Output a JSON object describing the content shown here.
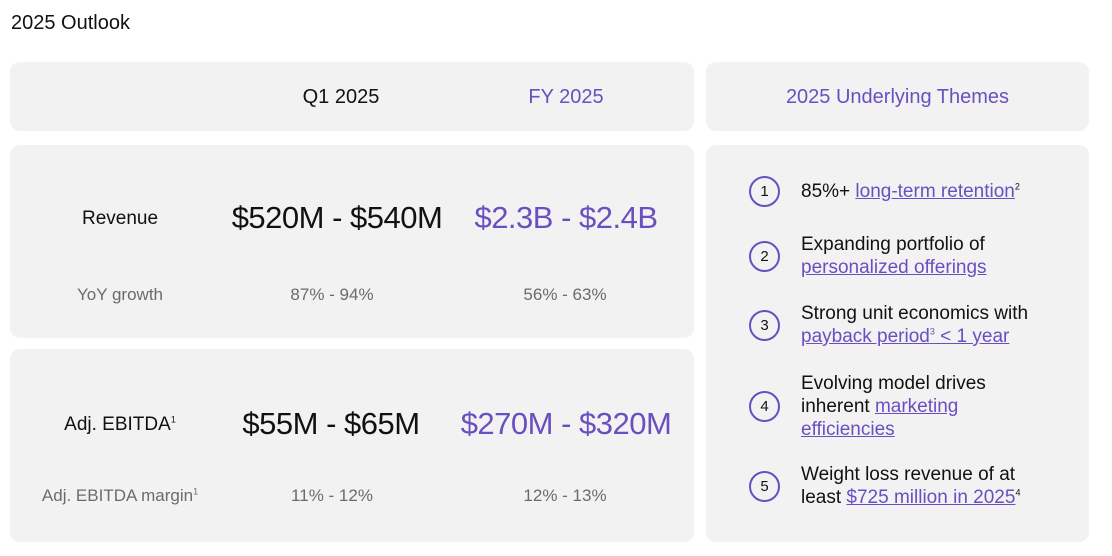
{
  "page_title": "2025 Outlook",
  "header": {
    "col_q1": "Q1 2025",
    "col_fy": "FY 2025",
    "themes_title": "2025 Underlying Themes"
  },
  "revenue": {
    "label": "Revenue",
    "q1": "$520M - $540M",
    "fy": "$2.3B - $2.4B",
    "growth_label": "YoY growth",
    "growth_q1": "87% - 94%",
    "growth_fy": "56% - 63%"
  },
  "ebitda": {
    "label": "Adj. EBITDA",
    "label_sup": "1",
    "q1": "$55M - $65M",
    "fy": "$270M - $320M",
    "margin_label": "Adj. EBITDA margin",
    "margin_sup": "1",
    "margin_q1": "11% - 12%",
    "margin_fy": "12% - 13%"
  },
  "themes": [
    {
      "num": "1",
      "pre": "85%+ ",
      "link": "long-term retention",
      "sup": "2"
    },
    {
      "num": "2",
      "pre": "Expanding portfolio of ",
      "link": "personalized offerings"
    },
    {
      "num": "3",
      "pre": "Strong unit economics with ",
      "link": "payback period",
      "sup": "3",
      "post": " < 1 year"
    },
    {
      "num": "4",
      "pre": "Evolving model drives inherent ",
      "link": "marketing efficiencies"
    },
    {
      "num": "5",
      "pre": "Weight loss revenue of at least ",
      "link": "$725 million in 2025",
      "sup": "4"
    }
  ],
  "colors": {
    "accent": "#6a4fc1",
    "card_bg": "#f2f2f2",
    "muted_text": "#6b6b6b"
  }
}
